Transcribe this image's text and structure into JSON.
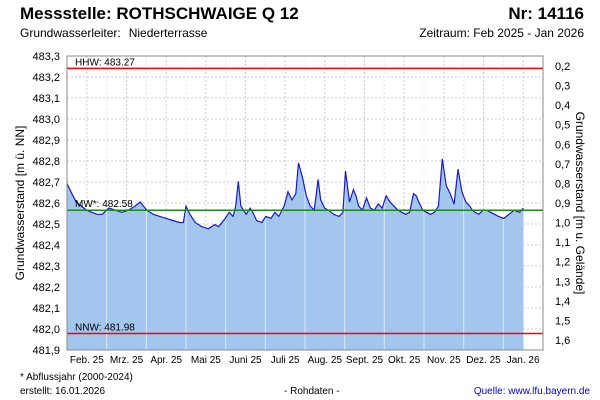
{
  "header": {
    "title": "Messstelle: ROTHSCHWAIGE Q 12",
    "number": "Nr: 14116",
    "aquifer_label": "Grundwasserleiter:",
    "aquifer_value": "Niederterrasse",
    "period": "Zeitraum: Feb 2025 - Jan 2026"
  },
  "footer": {
    "footnote": "* Abflussjahr (2000-2024)",
    "created": "erstellt:  16.01.2026",
    "rawdata": "- Rohdaten -",
    "source": "Quelle: www.lfu.bayern.de"
  },
  "colors": {
    "fill": "#a3c6ee",
    "line": "#1a1acc",
    "hhw": "#ff0000",
    "nnw": "#ff0000",
    "mw": "#1a8a1a",
    "grid": "#cccccc"
  },
  "chart_data": {
    "type": "area",
    "ylabel": "Grundwasserstand [m ü. NN]",
    "y2label": "Grundwasserstand [m u. Gelände]",
    "ylim": [
      481.9,
      483.33
    ],
    "yticks": [
      "483,3",
      "483,2",
      "483,1",
      "483,0",
      "482,9",
      "482,8",
      "482,7",
      "482,6",
      "482,5",
      "482,4",
      "482,3",
      "482,2",
      "482,1",
      "482,0",
      "481,9"
    ],
    "y2ticks": [
      "0,2",
      "0,3",
      "0,4",
      "0,5",
      "0,6",
      "0,7",
      "0,8",
      "0,9",
      "1,0",
      "1,1",
      "1,2",
      "1,3",
      "1,4",
      "1,5",
      "1,6"
    ],
    "xtick_labels": [
      "Feb. 25",
      "Mrz. 25",
      "Apr. 25",
      "Mai 25",
      "Juni 25",
      "Juli 25",
      "Aug. 25",
      "Sept. 25",
      "Okt. 25",
      "Nov. 25",
      "Dez. 25",
      "Jan. 26"
    ],
    "xlim": [
      "2025-02-01",
      "2026-01-31"
    ],
    "reference_lines": [
      {
        "key": "hhw",
        "label": "HHW: 483.27",
        "value": 483.27
      },
      {
        "key": "mw",
        "label": "MW*: 482.58",
        "value": 482.58
      },
      {
        "key": "nnw",
        "label": "NNW: 481.98",
        "value": 481.98
      }
    ],
    "series": [
      {
        "x": [
          "2025-02-01",
          "2025-02-04",
          "2025-02-08",
          "2025-02-12",
          "2025-02-16",
          "2025-02-20",
          "2025-02-24",
          "2025-02-28",
          "2025-03-05",
          "2025-03-10",
          "2025-03-15",
          "2025-03-20",
          "2025-03-25",
          "2025-03-29",
          "2025-04-03",
          "2025-04-08",
          "2025-04-13",
          "2025-04-18",
          "2025-04-23",
          "2025-04-28",
          "2025-05-01",
          "2025-05-03",
          "2025-05-06",
          "2025-05-10",
          "2025-05-15",
          "2025-05-20",
          "2025-05-25",
          "2025-05-28",
          "2025-06-02",
          "2025-06-05",
          "2025-06-08",
          "2025-06-10",
          "2025-06-12",
          "2025-06-14",
          "2025-06-18",
          "2025-06-21",
          "2025-06-23",
          "2025-06-26",
          "2025-06-30",
          "2025-07-03",
          "2025-07-07",
          "2025-07-10",
          "2025-07-13",
          "2025-07-17",
          "2025-07-20",
          "2025-07-23",
          "2025-07-26",
          "2025-07-28",
          "2025-07-31",
          "2025-08-03",
          "2025-08-06",
          "2025-08-09",
          "2025-08-12",
          "2025-08-14",
          "2025-08-17",
          "2025-08-20",
          "2025-08-24",
          "2025-08-28",
          "2025-08-31",
          "2025-09-02",
          "2025-09-05",
          "2025-09-08",
          "2025-09-10",
          "2025-09-12",
          "2025-09-15",
          "2025-09-18",
          "2025-09-21",
          "2025-09-24",
          "2025-09-27",
          "2025-09-30",
          "2025-10-03",
          "2025-10-06",
          "2025-10-09",
          "2025-10-12",
          "2025-10-15",
          "2025-10-18",
          "2025-10-21",
          "2025-10-24",
          "2025-10-26",
          "2025-10-28",
          "2025-10-31",
          "2025-11-03",
          "2025-11-06",
          "2025-11-09",
          "2025-11-12",
          "2025-11-15",
          "2025-11-18",
          "2025-11-21",
          "2025-11-24",
          "2025-11-27",
          "2025-11-30",
          "2025-12-03",
          "2025-12-06",
          "2025-12-08",
          "2025-12-10",
          "2025-12-13",
          "2025-12-16",
          "2025-12-19",
          "2025-12-22",
          "2025-12-25",
          "2025-12-28",
          "2026-01-01",
          "2026-01-05",
          "2026-01-09",
          "2026-01-13",
          "2026-01-16"
        ],
        "y": [
          482.71,
          482.67,
          482.62,
          482.6,
          482.58,
          482.57,
          482.56,
          482.56,
          482.59,
          482.58,
          482.57,
          482.58,
          482.6,
          482.62,
          482.58,
          482.56,
          482.55,
          482.54,
          482.53,
          482.52,
          482.52,
          482.6,
          482.56,
          482.52,
          482.5,
          482.49,
          482.51,
          482.5,
          482.54,
          482.57,
          482.55,
          482.6,
          482.72,
          482.6,
          482.56,
          482.59,
          482.57,
          482.53,
          482.52,
          482.55,
          482.54,
          482.57,
          482.55,
          482.6,
          482.67,
          482.63,
          482.66,
          482.81,
          482.74,
          482.65,
          482.6,
          482.58,
          482.73,
          482.63,
          482.59,
          482.58,
          482.56,
          482.55,
          482.57,
          482.77,
          482.62,
          482.68,
          482.65,
          482.6,
          482.58,
          482.64,
          482.59,
          482.58,
          482.61,
          482.59,
          482.65,
          482.62,
          482.6,
          482.58,
          482.57,
          482.56,
          482.57,
          482.66,
          482.65,
          482.62,
          482.58,
          482.57,
          482.56,
          482.57,
          482.6,
          482.83,
          482.7,
          482.66,
          482.61,
          482.78,
          482.67,
          482.62,
          482.6,
          482.58,
          482.57,
          482.56,
          482.58,
          482.58,
          482.57,
          482.56,
          482.55,
          482.54,
          482.56,
          482.58,
          482.57,
          482.59
        ]
      }
    ]
  }
}
